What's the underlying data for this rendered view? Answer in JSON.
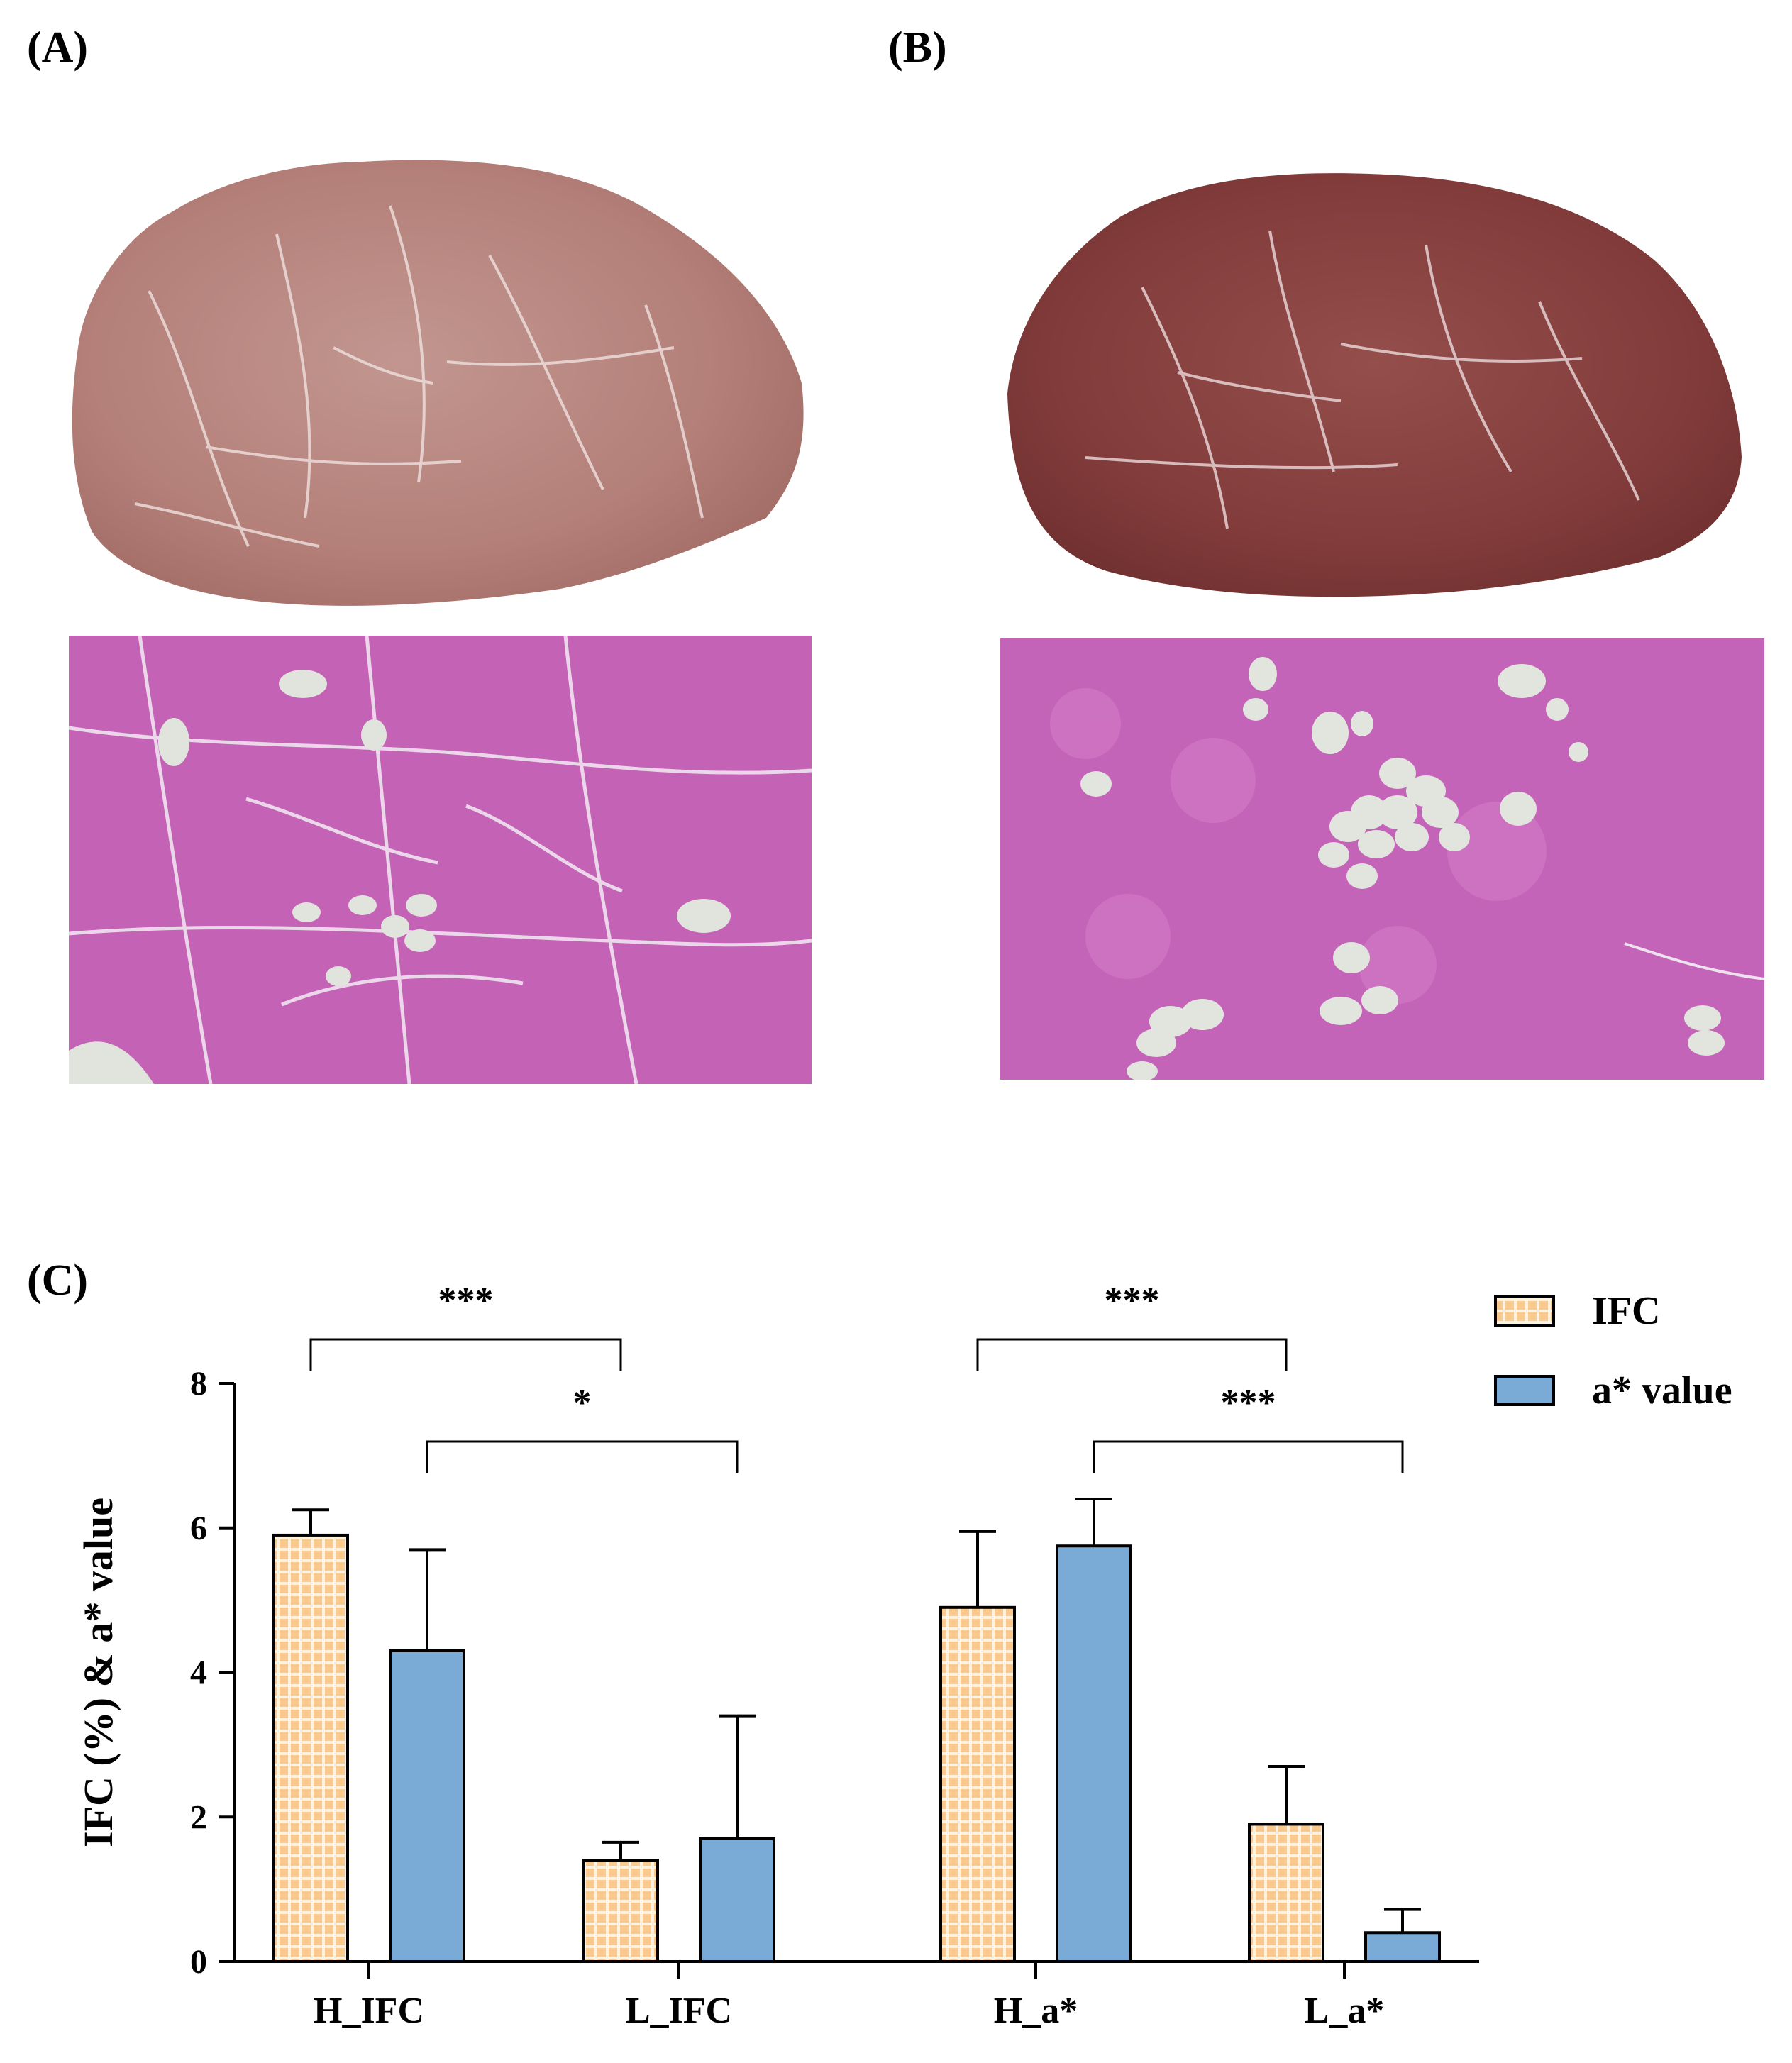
{
  "panels": {
    "a_label": "(A)",
    "b_label": "(B)",
    "c_label": "(C)"
  },
  "colors": {
    "ifc_fill": "#f9c98e",
    "ifc_grid": "#fff2de",
    "astar_fill": "#7aaad6",
    "meat_a": "#b98780",
    "meat_b": "#8a4744",
    "he_stain": "#c860b8",
    "fat_vacuole": "#e2e4de"
  },
  "chart_data": {
    "type": "bar",
    "categories": [
      "H_IFC",
      "L_IFC",
      "H_a*",
      "L_a*"
    ],
    "ylabel": "IFC (%) & a* value",
    "ylim": [
      0,
      8
    ],
    "yticks": [
      "0",
      "2",
      "4",
      "6",
      "8"
    ],
    "series": [
      {
        "name": "IFC",
        "values": [
          5.9,
          1.4,
          4.9,
          1.9
        ],
        "errors": [
          0.35,
          0.25,
          1.05,
          0.8
        ]
      },
      {
        "name": "a* value",
        "values": [
          4.3,
          1.7,
          5.75,
          0.4
        ],
        "errors": [
          1.4,
          1.7,
          0.65,
          0.32
        ]
      }
    ],
    "significance": [
      {
        "label": "***",
        "from": "H_IFC IFC",
        "to": "L_IFC IFC"
      },
      {
        "label": "*",
        "from": "H_IFC a* value",
        "to": "L_IFC a* value"
      },
      {
        "label": "***",
        "from": "H_a* IFC",
        "to": "L_a* IFC"
      },
      {
        "label": "***",
        "from": "H_a* a* value",
        "to": "L_a* a* value"
      }
    ],
    "legend_position": "top-right",
    "grid": false
  }
}
